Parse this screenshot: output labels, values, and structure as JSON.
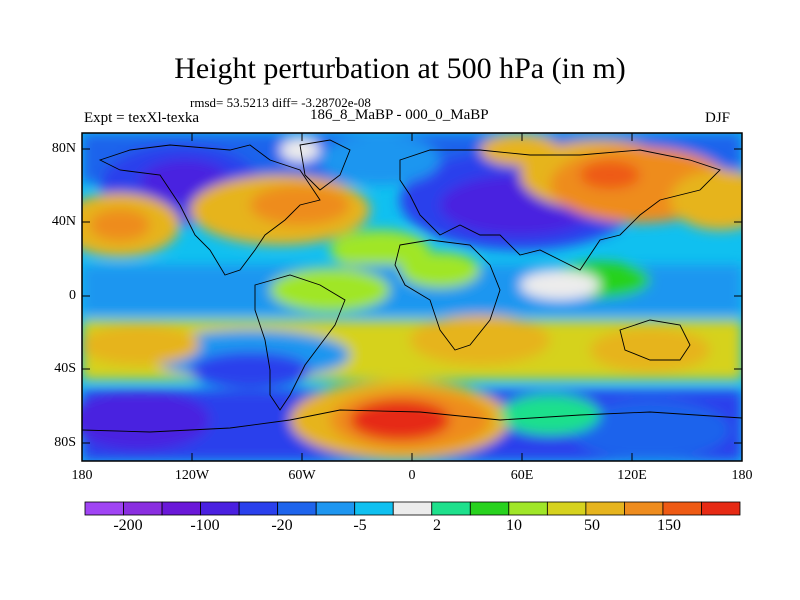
{
  "title": "Height perturbation at 500 hPa (in m)",
  "stats": "rmsd= 53.5213 diff= -3.28702e-08",
  "left_label": "Expt = texXl-texka",
  "center_label": "186_8_MaBP - 000_0_MaBP",
  "right_label": "DJF",
  "y_ticks": [
    "80N",
    "40N",
    "0",
    "40S",
    "80S"
  ],
  "x_ticks": [
    "180",
    "120W",
    "60W",
    "0",
    "60E",
    "120E",
    "180"
  ],
  "colorbar": {
    "colors": [
      "#a044f4",
      "#8a2ee0",
      "#6a18d8",
      "#4a20e0",
      "#2a40ec",
      "#1e64ec",
      "#1e96f0",
      "#10c0f0",
      "#ececec",
      "#1ee08c",
      "#28d21e",
      "#a0e628",
      "#d6d21e",
      "#e6b41e",
      "#ee8c1e",
      "#ee5a14",
      "#e62a14"
    ],
    "labels": [
      "-200",
      "-100",
      "-20",
      "-5",
      "2",
      "10",
      "50",
      "150"
    ]
  },
  "legend_colors": {
    "ocean_fill": "#1e64ec",
    "coast": "#000000"
  }
}
